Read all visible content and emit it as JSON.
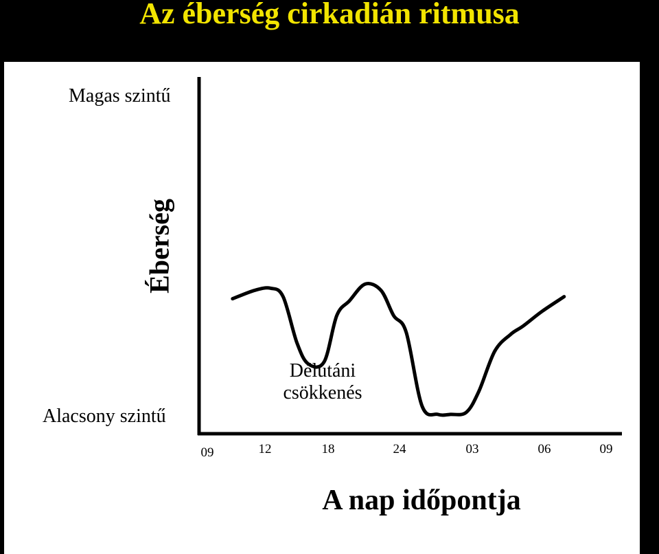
{
  "header": {
    "title": "Az éberség cirkadián ritmusa",
    "title_color": "#f2e400",
    "background": "#000000"
  },
  "chart_data": {
    "type": "line",
    "title": "Az éberség cirkadián ritmusa",
    "ylabel": "Éberség",
    "xlabel": "A nap időpontja",
    "y_high_label": "Magas szintű",
    "y_low_label": "Alacsony szintű",
    "ylim": [
      0,
      100
    ],
    "x_ticks": [
      "09",
      "12",
      "18",
      "24",
      "03",
      "06",
      "09"
    ],
    "annotation": [
      "Délutáni",
      "csökkenés"
    ],
    "grid": false,
    "series": [
      {
        "color": "#000000",
        "x": [
          0.4,
          0.75,
          1.0,
          1.2,
          1.42,
          1.6,
          1.85,
          2.05,
          2.25,
          2.5,
          2.75,
          2.95,
          3.15,
          3.4,
          3.65,
          3.85,
          4.1,
          4.3,
          4.55,
          4.8,
          5.0,
          5.3,
          5.65
        ],
        "y": [
          56,
          60,
          61,
          57,
          35,
          25,
          26,
          48,
          55,
          63,
          60,
          48,
          40,
          5,
          1,
          1,
          2,
          12,
          31,
          39,
          43,
          50,
          57
        ]
      }
    ]
  }
}
